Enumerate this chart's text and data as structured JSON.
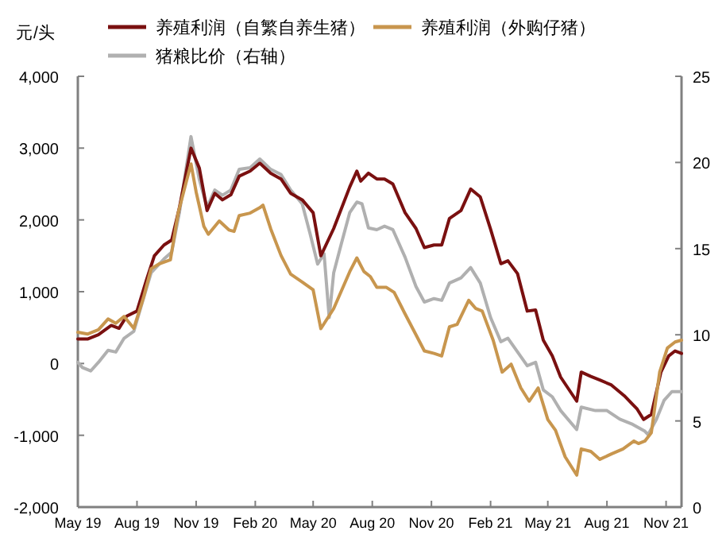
{
  "chart_data": {
    "type": "line",
    "ylabel": "元/头",
    "legend": "top",
    "grid": false,
    "marker": "none",
    "line_style": "solid",
    "xlim": [
      "2019-05-01",
      "2021-11-25"
    ],
    "xticks": [
      {
        "value": "2019-05-01",
        "label": "May 19"
      },
      {
        "value": "2019-08-01",
        "label": "Aug 19"
      },
      {
        "value": "2019-11-01",
        "label": "Nov 19"
      },
      {
        "value": "2020-02-01",
        "label": "Feb 20"
      },
      {
        "value": "2020-05-01",
        "label": "May 20"
      },
      {
        "value": "2020-08-01",
        "label": "Aug 20"
      },
      {
        "value": "2020-11-01",
        "label": "Nov 20"
      },
      {
        "value": "2021-02-01",
        "label": "Feb 21"
      },
      {
        "value": "2021-05-01",
        "label": "May 21"
      },
      {
        "value": "2021-08-01",
        "label": "Aug 21"
      },
      {
        "value": "2021-11-01",
        "label": "Nov 21"
      }
    ],
    "ylim": [
      -2000,
      4000
    ],
    "yticks": [
      {
        "value": -2000,
        "label": "-2,000"
      },
      {
        "value": -1000,
        "label": "-1,000"
      },
      0,
      {
        "value": 1000,
        "label": "1,000"
      },
      {
        "value": 2000,
        "label": "2,000"
      },
      {
        "value": 3000,
        "label": "3,000"
      },
      {
        "value": 4000,
        "label": "4,000"
      }
    ],
    "y2lim": [
      0,
      25
    ],
    "y2ticks": [
      0,
      5,
      10,
      15,
      20,
      25
    ],
    "series": [
      {
        "name": "养殖利润（自繁自养生猪）",
        "color": "#7a1010",
        "x": [
          "2019-05-01",
          "2019-05-16",
          "2019-06-02",
          "2019-06-22",
          "2019-07-04",
          "2019-07-16",
          "2019-08-01",
          "2019-08-16",
          "2019-08-28",
          "2019-09-12",
          "2019-09-24",
          "2019-10-06",
          "2019-10-24",
          "2019-11-06",
          "2019-11-18",
          "2019-11-30",
          "2019-12-12",
          "2019-12-25",
          "2020-01-07",
          "2020-01-24",
          "2020-02-08",
          "2020-02-25",
          "2020-03-12",
          "2020-03-27",
          "2020-04-14",
          "2020-05-01",
          "2020-05-13",
          "2020-06-02",
          "2020-06-27",
          "2020-07-08",
          "2020-07-14",
          "2020-07-26",
          "2020-08-08",
          "2020-08-20",
          "2020-09-02",
          "2020-09-21",
          "2020-10-08",
          "2020-10-21",
          "2020-11-05",
          "2020-11-17",
          "2020-11-29",
          "2020-12-17",
          "2021-01-01",
          "2021-01-16",
          "2021-02-01",
          "2021-02-17",
          "2021-02-28",
          "2021-03-15",
          "2021-03-30",
          "2021-04-12",
          "2021-04-24",
          "2021-05-08",
          "2021-05-21",
          "2021-06-15",
          "2021-06-22",
          "2021-07-07",
          "2021-07-21",
          "2021-08-08",
          "2021-08-28",
          "2021-09-17",
          "2021-09-27",
          "2021-10-09",
          "2021-10-24",
          "2021-11-05",
          "2021-11-15",
          "2021-11-25"
        ],
        "values": [
          340,
          340,
          400,
          530,
          490,
          660,
          730,
          1170,
          1500,
          1650,
          1720,
          2170,
          3000,
          2720,
          2130,
          2370,
          2280,
          2350,
          2610,
          2680,
          2790,
          2650,
          2570,
          2370,
          2280,
          2100,
          1500,
          1880,
          2460,
          2680,
          2540,
          2650,
          2570,
          2570,
          2500,
          2100,
          1880,
          1615,
          1650,
          1650,
          2020,
          2130,
          2430,
          2320,
          1870,
          1390,
          1430,
          1250,
          730,
          745,
          325,
          105,
          -190,
          -525,
          -120,
          -180,
          -230,
          -300,
          -450,
          -635,
          -780,
          -710,
          -120,
          105,
          175,
          140
        ]
      },
      {
        "name": "养殖利润（外购仔猪）",
        "color": "#c8964e",
        "x": [
          "2019-05-01",
          "2019-05-16",
          "2019-06-02",
          "2019-06-17",
          "2019-06-29",
          "2019-07-12",
          "2019-07-27",
          "2019-08-11",
          "2019-08-23",
          "2019-09-05",
          "2019-09-22",
          "2019-10-04",
          "2019-10-19",
          "2019-10-24",
          "2019-11-01",
          "2019-11-13",
          "2019-11-20",
          "2019-12-07",
          "2019-12-22",
          "2019-12-30",
          "2020-01-07",
          "2020-01-24",
          "2020-02-08",
          "2020-02-13",
          "2020-02-25",
          "2020-03-12",
          "2020-03-27",
          "2020-04-14",
          "2020-05-01",
          "2020-05-13",
          "2020-06-02",
          "2020-06-27",
          "2020-07-08",
          "2020-07-19",
          "2020-07-29",
          "2020-08-08",
          "2020-08-23",
          "2020-09-04",
          "2020-09-21",
          "2020-10-08",
          "2020-10-21",
          "2020-11-05",
          "2020-11-17",
          "2020-11-29",
          "2020-12-11",
          "2020-12-29",
          "2021-01-09",
          "2021-01-19",
          "2021-02-05",
          "2021-02-19",
          "2021-03-05",
          "2021-03-20",
          "2021-04-02",
          "2021-04-16",
          "2021-05-01",
          "2021-05-13",
          "2021-05-28",
          "2021-06-15",
          "2021-06-22",
          "2021-07-07",
          "2021-07-21",
          "2021-08-08",
          "2021-08-26",
          "2021-09-12",
          "2021-09-19",
          "2021-09-29",
          "2021-10-09",
          "2021-10-22",
          "2021-11-03",
          "2021-11-15",
          "2021-11-25"
        ],
        "values": [
          435,
          410,
          470,
          620,
          560,
          655,
          490,
          915,
          1320,
          1390,
          1445,
          2095,
          2610,
          2780,
          2390,
          1910,
          1800,
          1985,
          1860,
          1840,
          2060,
          2095,
          2170,
          2205,
          1875,
          1505,
          1245,
          1135,
          1025,
          485,
          765,
          1280,
          1470,
          1280,
          1210,
          1060,
          1060,
          990,
          690,
          400,
          175,
          140,
          105,
          510,
          545,
          880,
          765,
          730,
          325,
          -120,
          -10,
          -340,
          -525,
          -340,
          -780,
          -930,
          -1300,
          -1555,
          -1190,
          -1225,
          -1335,
          -1260,
          -1190,
          -1080,
          -1115,
          -1080,
          -965,
          -120,
          215,
          300,
          325
        ]
      },
      {
        "name": "猪粮比价（右轴）",
        "color": "#b0b0b0",
        "axis": "y2",
        "x": [
          "2019-05-01",
          "2019-05-08",
          "2019-05-21",
          "2019-06-02",
          "2019-06-17",
          "2019-06-29",
          "2019-07-12",
          "2019-07-27",
          "2019-08-11",
          "2019-08-23",
          "2019-09-12",
          "2019-09-24",
          "2019-10-06",
          "2019-10-24",
          "2019-11-06",
          "2019-11-18",
          "2019-11-30",
          "2019-12-12",
          "2019-12-25",
          "2020-01-07",
          "2020-01-24",
          "2020-02-08",
          "2020-02-25",
          "2020-03-12",
          "2020-03-27",
          "2020-04-14",
          "2020-04-26",
          "2020-05-08",
          "2020-05-18",
          "2020-05-26",
          "2020-06-02",
          "2020-06-14",
          "2020-06-27",
          "2020-07-08",
          "2020-07-16",
          "2020-07-26",
          "2020-08-08",
          "2020-08-20",
          "2020-09-02",
          "2020-09-21",
          "2020-10-08",
          "2020-10-21",
          "2020-11-05",
          "2020-11-17",
          "2020-11-29",
          "2020-12-17",
          "2021-01-01",
          "2021-01-16",
          "2021-02-01",
          "2021-02-17",
          "2021-02-28",
          "2021-03-15",
          "2021-03-30",
          "2021-04-12",
          "2021-04-24",
          "2021-05-08",
          "2021-05-21",
          "2021-06-15",
          "2021-06-22",
          "2021-07-14",
          "2021-08-01",
          "2021-08-21",
          "2021-09-10",
          "2021-09-29",
          "2021-10-04",
          "2021-10-17",
          "2021-10-29",
          "2021-11-10",
          "2021-11-25"
        ],
        "values": [
          8.4,
          8.1,
          7.9,
          8.4,
          9.1,
          9.0,
          9.8,
          10.2,
          12.1,
          13.6,
          14.4,
          14.8,
          17.1,
          21.5,
          19.0,
          17.4,
          18.4,
          18.1,
          18.4,
          19.6,
          19.7,
          20.2,
          19.6,
          19.3,
          18.4,
          17.6,
          15.9,
          14.1,
          14.7,
          11.0,
          13.6,
          15.3,
          17.1,
          17.7,
          17.6,
          16.2,
          16.1,
          16.3,
          16.1,
          14.5,
          12.8,
          11.9,
          12.1,
          12.0,
          13.0,
          13.3,
          13.9,
          13.0,
          11.0,
          9.6,
          9.8,
          9.0,
          8.2,
          8.4,
          6.8,
          6.4,
          5.6,
          4.5,
          5.8,
          5.6,
          5.6,
          5.1,
          4.8,
          4.4,
          4.2,
          5.1,
          6.2,
          6.7,
          6.7
        ]
      }
    ]
  }
}
